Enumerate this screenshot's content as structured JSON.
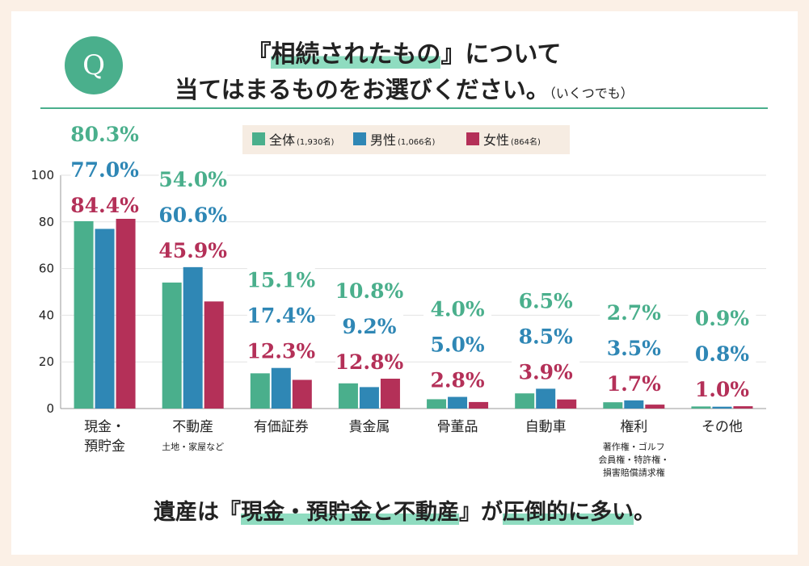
{
  "header": {
    "badge": "Q",
    "title_prefix": "『",
    "title_highlight": "相続されたもの",
    "title_suffix": "』について",
    "title_line2": "当てはまるものをお選びください。",
    "title_note": "（いくつでも）"
  },
  "conclusion": {
    "p1": "遺産は『",
    "hl1": "現金・預貯金と不動産",
    "p2": "』が",
    "hl2": "圧倒的に多い",
    "p3": "。"
  },
  "colors": {
    "all": "#4aaf8c",
    "male": "#2f87b5",
    "female": "#b43058",
    "accent": "#4aaf8c",
    "highlight": "#8fdcc0",
    "background": "#fbf0e6"
  },
  "chart_data": {
    "type": "bar",
    "ylim": [
      0,
      100
    ],
    "yticks": [
      0,
      20,
      40,
      60,
      80,
      100
    ],
    "grid": true,
    "legend_position": "top-center",
    "categories": [
      {
        "label": "現金・\n預貯金",
        "sub": ""
      },
      {
        "label": "不動産",
        "sub": "土地・家屋など"
      },
      {
        "label": "有価証券",
        "sub": ""
      },
      {
        "label": "貴金属",
        "sub": ""
      },
      {
        "label": "骨董品",
        "sub": ""
      },
      {
        "label": "自動車",
        "sub": ""
      },
      {
        "label": "権利",
        "sub": "著作権・ゴルフ\n会員権・特許権・\n損害賠償請求権"
      },
      {
        "label": "その他",
        "sub": ""
      }
    ],
    "series": [
      {
        "name": "全体",
        "note": "(1,930名)",
        "color": "#4aaf8c",
        "values": [
          80.3,
          54.0,
          15.1,
          10.8,
          4.0,
          6.5,
          2.7,
          0.9
        ],
        "labels": [
          "80.3%",
          "54.0%",
          "15.1%",
          "10.8%",
          "4.0%",
          "6.5%",
          "2.7%",
          "0.9%"
        ]
      },
      {
        "name": "男性",
        "note": "(1,066名)",
        "color": "#2f87b5",
        "values": [
          77.0,
          60.6,
          17.4,
          9.2,
          5.0,
          8.5,
          3.5,
          0.8
        ],
        "labels": [
          "77.0%",
          "60.6%",
          "17.4%",
          "9.2%",
          "5.0%",
          "8.5%",
          "3.5%",
          "0.8%"
        ]
      },
      {
        "name": "女性",
        "note": "(864名)",
        "color": "#b43058",
        "values": [
          84.4,
          45.9,
          12.3,
          12.8,
          2.8,
          3.9,
          1.7,
          1.0
        ],
        "labels": [
          "84.4%",
          "45.9%",
          "12.3%",
          "12.8%",
          "2.8%",
          "3.9%",
          "1.7%",
          "1.0%"
        ]
      }
    ]
  }
}
